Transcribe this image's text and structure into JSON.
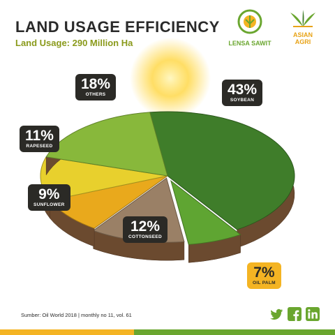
{
  "header": {
    "title": "LAND USAGE EFFICIENCY",
    "subtitle": "Land Usage: 290 Million Ha"
  },
  "logos": {
    "lensa": "LENSA SAWIT",
    "asian_line1": "ASIAN",
    "asian_line2": "AGRI"
  },
  "chart_data": {
    "type": "pie",
    "title": "LAND USAGE EFFICIENCY",
    "subtitle": "Land Usage: 290 Million Ha",
    "categories": [
      "SOYBEAN",
      "OIL PALM",
      "COTTONSEED",
      "SUNFLOWER",
      "RAPESEED",
      "OTHERS"
    ],
    "values": [
      43,
      7,
      12,
      9,
      11,
      18
    ],
    "labels": [
      "43%",
      "7%",
      "12%",
      "9%",
      "11%",
      "18%"
    ],
    "unit": "%",
    "highlight": "OIL PALM",
    "colors": [
      "#3f7d2a",
      "#5fa532",
      "#9a8066",
      "#e9a91c",
      "#e8d02d",
      "#88b83b"
    ]
  },
  "footer": {
    "source": "Sumber: Oil World 2018 | monthly no 11, vol. 61"
  },
  "social": {
    "icons": [
      "twitter-icon",
      "facebook-icon",
      "linkedin-icon"
    ],
    "color": "#6aa62f"
  },
  "colors": {
    "label_bg": "#2b2a26",
    "highlight_bg": "#f4b423",
    "accent_green": "#6aa62f",
    "accent_yellow": "#f4b423"
  }
}
